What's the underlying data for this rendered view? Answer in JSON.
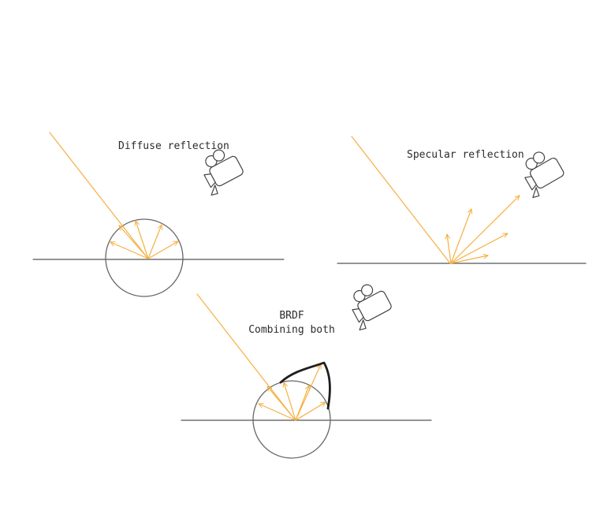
{
  "colors": {
    "background": "#ffffff",
    "ray": "#f5b041",
    "surface": "#555555",
    "lobe": "#1e1e1e"
  },
  "labels": {
    "diffuse": "Diffuse reflection",
    "specular": "Specular reflection",
    "brdf_line1": "BRDF",
    "brdf_line2": "Combining both"
  },
  "icons": {
    "camera": "video-camera-icon"
  }
}
